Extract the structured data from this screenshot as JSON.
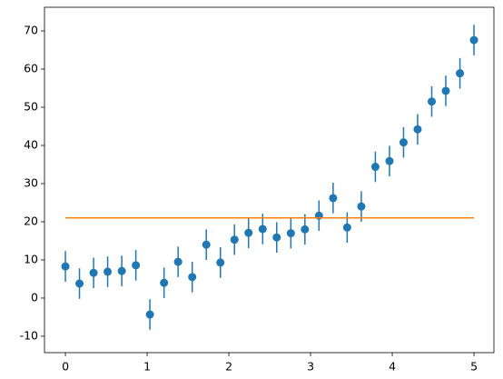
{
  "chart_data": {
    "type": "scatter",
    "series": [
      {
        "type": "errorbar",
        "color": "#1f77b4",
        "x": [
          0,
          0.172,
          0.345,
          0.517,
          0.69,
          0.862,
          1.034,
          1.207,
          1.379,
          1.552,
          1.724,
          1.897,
          2.069,
          2.241,
          2.414,
          2.586,
          2.759,
          2.931,
          3.103,
          3.276,
          3.448,
          3.621,
          3.793,
          3.966,
          4.138,
          4.31,
          4.483,
          4.655,
          4.828,
          5
        ],
        "values": [
          8.3,
          3.8,
          6.6,
          6.9,
          7.1,
          8.6,
          -4.3,
          4.0,
          9.5,
          5.5,
          14.0,
          9.3,
          15.3,
          17.1,
          18.1,
          15.9,
          17.0,
          18.0,
          21.6,
          26.2,
          18.5,
          24.0,
          34.4,
          35.9,
          40.8,
          44.2,
          51.5,
          54.3,
          58.9,
          67.6
        ],
        "errors": [
          4,
          4,
          4,
          4,
          4,
          4,
          4,
          4,
          4,
          4,
          4,
          4,
          4,
          4,
          4,
          4,
          4,
          4,
          4,
          4,
          4,
          4,
          4,
          4,
          4,
          4,
          4,
          4,
          4,
          4
        ]
      },
      {
        "type": "line",
        "color": "#ff7f0e",
        "x": [
          0,
          5
        ],
        "values": [
          21,
          21
        ]
      }
    ],
    "xlim": [
      -0.256,
      5.244
    ],
    "ylim": [
      -14.3,
      76.2
    ],
    "xticks": [
      0,
      1,
      2,
      3,
      4,
      5
    ],
    "yticks": [
      -10,
      0,
      10,
      20,
      30,
      40,
      50,
      60,
      70
    ]
  }
}
